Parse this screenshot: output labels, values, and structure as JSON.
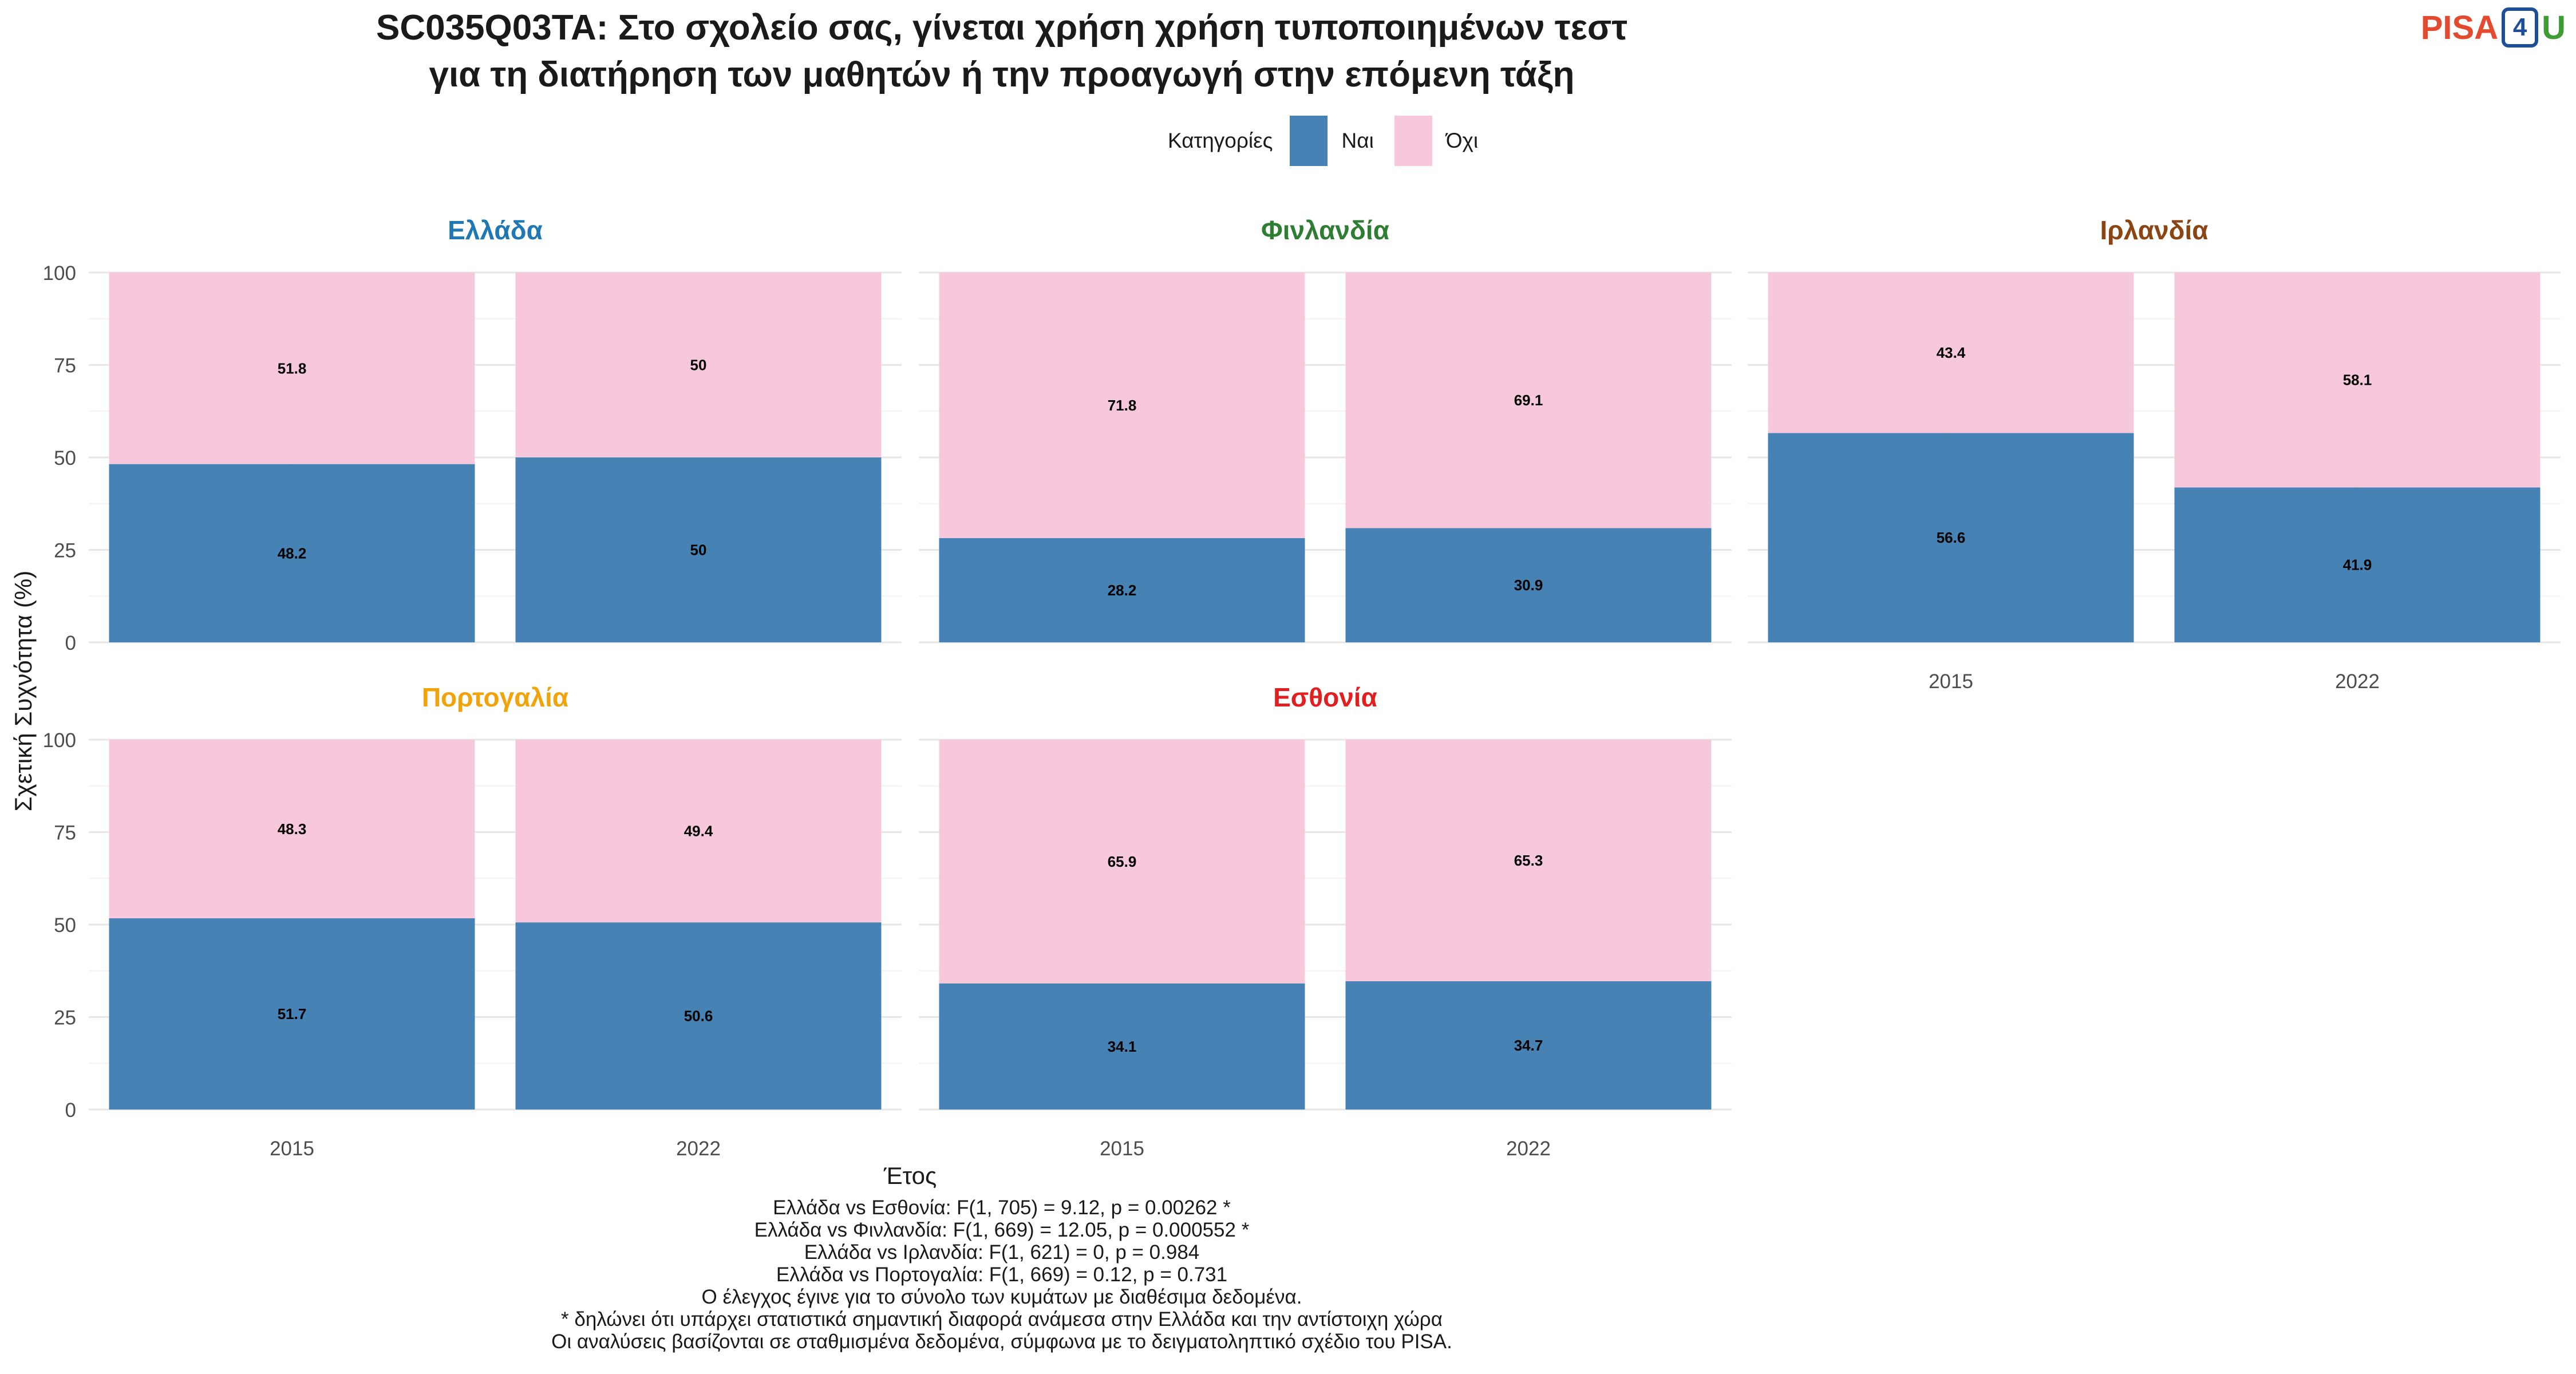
{
  "title_lines": [
    "SC035Q03TA: Στο σχολείο σας, γίνεται χρήση χρήση τυποποιημένων τεστ",
    "για τη διατήρηση των μαθητών ή την προαγωγή στην επόμενη τάξη"
  ],
  "logo": {
    "pisa": "PISA",
    "four": "4",
    "u": "U"
  },
  "legend": {
    "title": "Κατηγορίες",
    "items": [
      {
        "label": "Ναι",
        "color": "#4682b4"
      },
      {
        "label": "Όχι",
        "color": "#f7c8dc"
      }
    ]
  },
  "chart_data": {
    "type": "bar",
    "stacked": true,
    "xlabel": "Έτος",
    "ylabel": "Σχετική Συχνότητα (%)",
    "ylim": [
      0,
      100
    ],
    "yticks": [
      "0",
      "25",
      "50",
      "75",
      "100"
    ],
    "categories": [
      "2015",
      "2022"
    ],
    "grid": true,
    "legend_position": "top",
    "panels": [
      {
        "name": "Ελλάδα",
        "color": "#1f77b4",
        "series": [
          {
            "name": "Ναι",
            "values": [
              48.2,
              50
            ]
          },
          {
            "name": "Όχι",
            "values": [
              51.8,
              50
            ]
          }
        ],
        "labels": {
          "Ναι": [
            "48.2",
            "50"
          ],
          "Όχι": [
            "51.8",
            "50"
          ]
        }
      },
      {
        "name": "Φινλανδία",
        "color": "#2e7d32",
        "series": [
          {
            "name": "Ναι",
            "values": [
              28.2,
              30.9
            ]
          },
          {
            "name": "Όχι",
            "values": [
              71.8,
              69.1
            ]
          }
        ],
        "labels": {
          "Ναι": [
            "28.2",
            "30.9"
          ],
          "Όχι": [
            "71.8",
            "69.1"
          ]
        }
      },
      {
        "name": "Ιρλανδία",
        "color": "#8b4513",
        "series": [
          {
            "name": "Ναι",
            "values": [
              56.6,
              41.9
            ]
          },
          {
            "name": "Όχι",
            "values": [
              43.4,
              58.1
            ]
          }
        ],
        "labels": {
          "Ναι": [
            "56.6",
            "41.9"
          ],
          "Όχι": [
            "43.4",
            "58.1"
          ]
        }
      },
      {
        "name": "Πορτογαλία",
        "color": "#f0a30a",
        "series": [
          {
            "name": "Ναι",
            "values": [
              51.7,
              50.6
            ]
          },
          {
            "name": "Όχι",
            "values": [
              48.3,
              49.4
            ]
          }
        ],
        "labels": {
          "Ναι": [
            "51.7",
            "50.6"
          ],
          "Όχι": [
            "48.3",
            "49.4"
          ]
        }
      },
      {
        "name": "Εσθονία",
        "color": "#e02020",
        "series": [
          {
            "name": "Ναι",
            "values": [
              34.1,
              34.7
            ]
          },
          {
            "name": "Όχι",
            "values": [
              65.9,
              65.3
            ]
          }
        ],
        "labels": {
          "Ναι": [
            "34.1",
            "34.7"
          ],
          "Όχι": [
            "65.9",
            "65.3"
          ]
        }
      }
    ]
  },
  "footnotes": [
    "Ελλάδα vs Εσθονία: F(1, 705) = 9.12, p = 0.00262 *",
    "Ελλάδα vs Φινλανδία: F(1, 669) = 12.05, p = 0.000552 *",
    "Ελλάδα vs Ιρλανδία: F(1, 621) = 0, p = 0.984",
    "Ελλάδα vs Πορτογαλία: F(1, 669) = 0.12, p = 0.731",
    "Ο έλεγχος έγινε για το σύνολο των κυμάτων με διαθέσιμα δεδομένα.",
    "* δηλώνει ότι υπάρχει στατιστικά σημαντική διαφορά ανάμεσα στην Ελλάδα και την αντίστοιχη χώρα",
    "Οι αναλύσεις βασίζονται σε σταθμισμένα δεδομένα, σύμφωνα με το δειγματοληπτικό σχέδιο του PISA."
  ]
}
